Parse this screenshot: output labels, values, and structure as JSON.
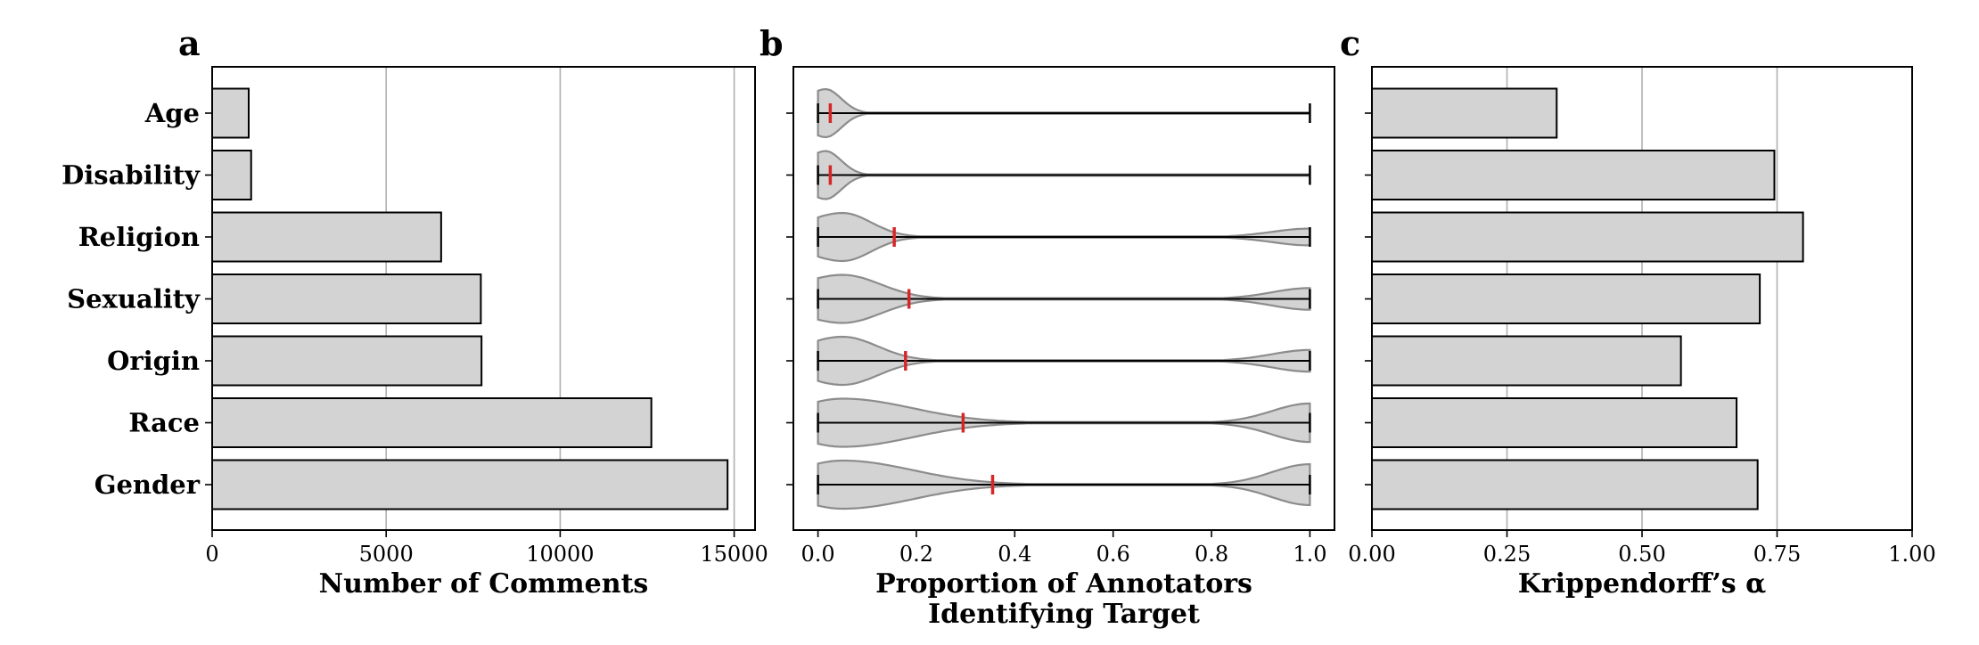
{
  "categories": [
    "Age",
    "Disability",
    "Religion",
    "Sexuality",
    "Origin",
    "Race",
    "Gender"
  ],
  "chart_data": [
    {
      "panel": "a",
      "type": "bar",
      "orientation": "horizontal",
      "categories": [
        "Age",
        "Disability",
        "Religion",
        "Sexuality",
        "Origin",
        "Race",
        "Gender"
      ],
      "values": [
        1050,
        1120,
        6580,
        7720,
        7740,
        12620,
        14810
      ],
      "xlabel": "Number of Comments",
      "xlim": [
        0,
        15600
      ],
      "xticks": [
        0,
        5000,
        10000,
        15000
      ],
      "xtick_labels": [
        "0",
        "5000",
        "10000",
        "15000"
      ],
      "grid": "vertical",
      "bar_color": "#d3d3d3"
    },
    {
      "panel": "b",
      "type": "violin",
      "orientation": "horizontal",
      "categories": [
        "Age",
        "Disability",
        "Religion",
        "Sexuality",
        "Origin",
        "Race",
        "Gender"
      ],
      "min": [
        0,
        0,
        0,
        0,
        0,
        0,
        0
      ],
      "max": [
        1,
        1,
        1,
        1,
        1,
        1,
        1
      ],
      "median": [
        0.025,
        0.025,
        0.155,
        0.185,
        0.178,
        0.295,
        0.355
      ],
      "xlabel_lines": [
        "Proportion of Annotators",
        "Identifying Target"
      ],
      "xlim": [
        -0.05,
        1.05
      ],
      "xticks": [
        0,
        0.2,
        0.4,
        0.6,
        0.8,
        1.0
      ],
      "xtick_labels": [
        "0.0",
        "0.2",
        "0.4",
        "0.6",
        "0.8",
        "1.0"
      ],
      "grid": "none",
      "median_color": "#d62728"
    },
    {
      "panel": "c",
      "type": "bar",
      "orientation": "horizontal",
      "categories": [
        "Age",
        "Disability",
        "Religion",
        "Sexuality",
        "Origin",
        "Race",
        "Gender"
      ],
      "values": [
        0.342,
        0.745,
        0.798,
        0.718,
        0.572,
        0.675,
        0.714
      ],
      "xlabel": "Krippendorff’s α",
      "xlim": [
        0,
        1.0
      ],
      "xticks": [
        0,
        0.25,
        0.5,
        0.75,
        1.0
      ],
      "xtick_labels": [
        "0.00",
        "0.25",
        "0.50",
        "0.75",
        "1.00"
      ],
      "grid": "vertical",
      "bar_color": "#d3d3d3"
    }
  ]
}
